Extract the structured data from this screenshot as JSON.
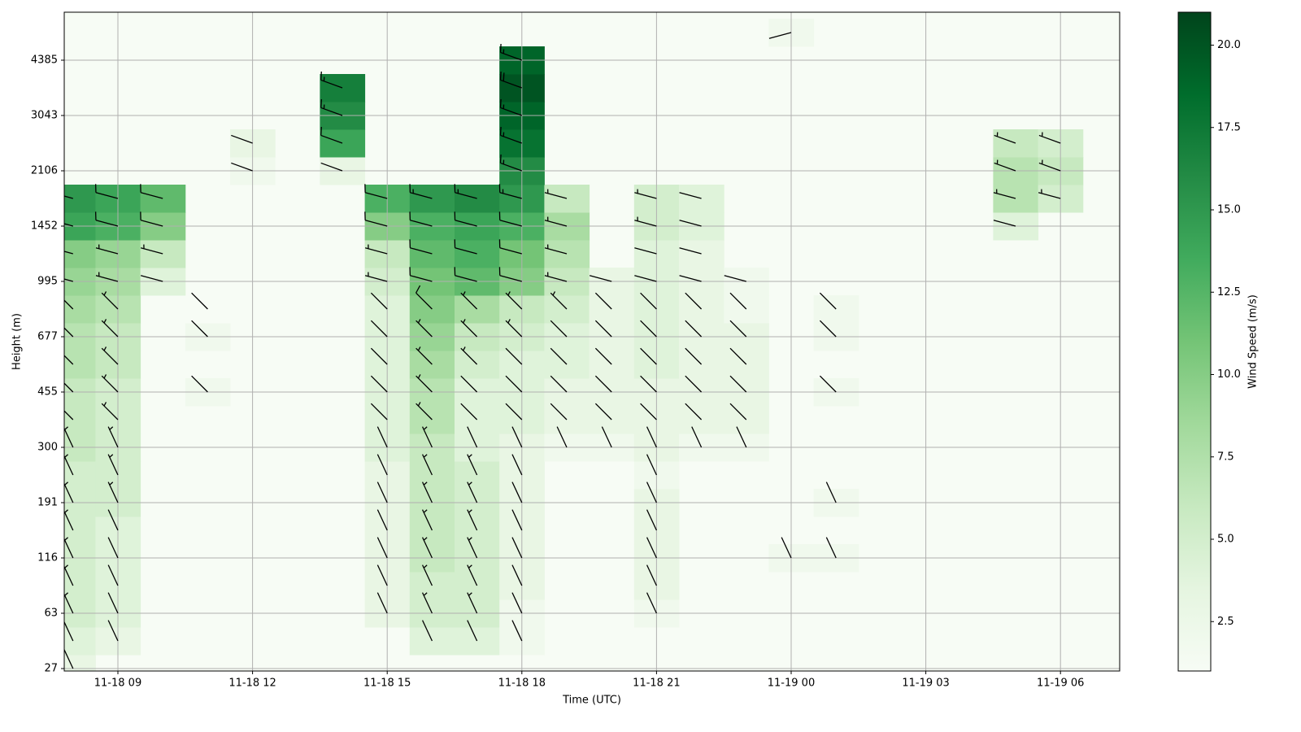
{
  "chart_data": {
    "type": "barb-heatmap",
    "xlabel": "Time (UTC)",
    "ylabel": "Height (m)",
    "colorbar_label": "Wind Speed (m/s)",
    "x_categories": [
      null,
      "11-18 09",
      null,
      null,
      "11-18 12",
      null,
      null,
      "11-18 15",
      null,
      null,
      "11-18 18",
      null,
      null,
      "11-18 21",
      null,
      null,
      "11-19 00",
      null,
      null,
      "11-19 03",
      null,
      null,
      "11-19 06",
      null
    ],
    "y_categories": [
      27,
      null,
      63,
      null,
      116,
      null,
      191,
      null,
      300,
      null,
      455,
      null,
      677,
      null,
      995,
      null,
      1452,
      null,
      2106,
      null,
      3043,
      null,
      4385,
      null
    ],
    "clim": [
      1,
      21
    ],
    "cticks": [
      2.5,
      {
        "value": 5,
        "label": "5.0"
      },
      7.5,
      {
        "value": 10,
        "label": "10.0"
      },
      12.5,
      {
        "value": 15,
        "label": "15.0"
      },
      17.5,
      {
        "value": 20,
        "label": "20.0"
      }
    ],
    "colormap": [
      "#f7fcf5",
      "#e5f5e0",
      "#c7e9c0",
      "#a1d99b",
      "#74c476",
      "#41ab5d",
      "#238b45",
      "#006d2c",
      "#00441b"
    ],
    "barb_color": "#000000",
    "grid": true,
    "z": [
      [
        3,
        null,
        null,
        null,
        null,
        null,
        null,
        null,
        null,
        null,
        null,
        null,
        null,
        null,
        null,
        null,
        null,
        null,
        null,
        null,
        null,
        null,
        null,
        null
      ],
      [
        4,
        3,
        null,
        null,
        null,
        null,
        null,
        null,
        4,
        4,
        2,
        null,
        null,
        null,
        null,
        null,
        null,
        null,
        null,
        null,
        null,
        null,
        null,
        null
      ],
      [
        5,
        4,
        null,
        null,
        null,
        null,
        null,
        3,
        5,
        5,
        2,
        null,
        null,
        2,
        null,
        null,
        null,
        null,
        null,
        null,
        null,
        null,
        null,
        null
      ],
      [
        5,
        4,
        null,
        null,
        null,
        null,
        null,
        3,
        5,
        5,
        3,
        null,
        null,
        3,
        null,
        null,
        null,
        null,
        null,
        null,
        null,
        null,
        null,
        null
      ],
      [
        5,
        4,
        null,
        null,
        null,
        null,
        null,
        3,
        6,
        5,
        3,
        null,
        null,
        3,
        null,
        null,
        2,
        2,
        null,
        null,
        null,
        null,
        null,
        null
      ],
      [
        5,
        4,
        null,
        null,
        null,
        null,
        null,
        3,
        6,
        5,
        3,
        null,
        null,
        3,
        null,
        null,
        null,
        null,
        null,
        null,
        null,
        null,
        null,
        null
      ],
      [
        5,
        5,
        null,
        null,
        null,
        null,
        null,
        3,
        6,
        5,
        3,
        null,
        null,
        3,
        null,
        null,
        null,
        2,
        null,
        null,
        null,
        null,
        null,
        null
      ],
      [
        5,
        5,
        null,
        null,
        null,
        null,
        null,
        3,
        6,
        5,
        3,
        null,
        null,
        2,
        null,
        null,
        null,
        null,
        null,
        null,
        null,
        null,
        null,
        null
      ],
      [
        6,
        5,
        null,
        null,
        null,
        null,
        null,
        4,
        6,
        4,
        3,
        2,
        2,
        3,
        2,
        2,
        null,
        null,
        null,
        null,
        null,
        null,
        null,
        null
      ],
      [
        6,
        5,
        null,
        null,
        null,
        null,
        null,
        4,
        7,
        4,
        4,
        3,
        3,
        3,
        3,
        3,
        null,
        null,
        null,
        null,
        null,
        null,
        null,
        null
      ],
      [
        6,
        5,
        null,
        2,
        null,
        null,
        null,
        4,
        7,
        4,
        4,
        3,
        3,
        3,
        3,
        3,
        null,
        2,
        null,
        null,
        null,
        null,
        null,
        null
      ],
      [
        7,
        6,
        null,
        null,
        null,
        null,
        null,
        4,
        8,
        5,
        4,
        4,
        3,
        4,
        3,
        3,
        null,
        null,
        null,
        null,
        null,
        null,
        null,
        null
      ],
      [
        7,
        6,
        null,
        2,
        null,
        null,
        null,
        4,
        9,
        6,
        5,
        4,
        3,
        4,
        3,
        3,
        null,
        2,
        null,
        null,
        null,
        null,
        null,
        null
      ],
      [
        8,
        7,
        null,
        1,
        null,
        null,
        null,
        4,
        10,
        8,
        6,
        5,
        3,
        4,
        3,
        2,
        null,
        2,
        null,
        null,
        null,
        null,
        null,
        null
      ],
      [
        9,
        8,
        4,
        null,
        null,
        null,
        null,
        5,
        11,
        12,
        10,
        6,
        3,
        4,
        3,
        2,
        null,
        null,
        null,
        null,
        null,
        null,
        null,
        null
      ],
      [
        10,
        9,
        6,
        null,
        null,
        null,
        null,
        6,
        12,
        13,
        11,
        7,
        null,
        4,
        3,
        null,
        null,
        null,
        null,
        null,
        null,
        null,
        null,
        null
      ],
      [
        14,
        13,
        10,
        null,
        null,
        null,
        null,
        10,
        13,
        14,
        13,
        8,
        null,
        5,
        4,
        null,
        null,
        null,
        null,
        null,
        null,
        4,
        null,
        null
      ],
      [
        15,
        14,
        12,
        null,
        null,
        null,
        null,
        13,
        15,
        16,
        15,
        6,
        null,
        5,
        4,
        null,
        null,
        null,
        null,
        null,
        null,
        7,
        5,
        null
      ],
      [
        null,
        null,
        null,
        null,
        2,
        null,
        3,
        null,
        null,
        null,
        16,
        null,
        null,
        null,
        null,
        null,
        null,
        null,
        null,
        null,
        null,
        7,
        6,
        null
      ],
      [
        null,
        null,
        null,
        null,
        3,
        null,
        14,
        null,
        null,
        null,
        18,
        null,
        null,
        null,
        null,
        null,
        null,
        null,
        null,
        null,
        null,
        6,
        5,
        null
      ],
      [
        null,
        null,
        null,
        null,
        null,
        null,
        16,
        null,
        null,
        null,
        19,
        null,
        null,
        null,
        null,
        null,
        null,
        null,
        null,
        null,
        null,
        null,
        null,
        null
      ],
      [
        null,
        null,
        null,
        null,
        null,
        null,
        17,
        null,
        null,
        null,
        20,
        null,
        null,
        null,
        null,
        null,
        null,
        null,
        null,
        null,
        null,
        null,
        null,
        null
      ],
      [
        null,
        null,
        null,
        null,
        null,
        null,
        null,
        null,
        null,
        null,
        19,
        null,
        null,
        null,
        null,
        null,
        null,
        null,
        null,
        null,
        null,
        null,
        null,
        null
      ],
      [
        null,
        null,
        null,
        null,
        null,
        null,
        null,
        null,
        null,
        null,
        null,
        null,
        null,
        null,
        null,
        null,
        2,
        null,
        null,
        null,
        null,
        null,
        null,
        null
      ]
    ],
    "direction": [
      [
        335,
        null,
        null,
        null,
        null,
        null,
        null,
        null,
        null,
        null,
        null,
        null,
        null,
        null,
        null,
        null,
        null,
        null,
        null,
        null,
        null,
        null,
        null,
        null
      ],
      [
        335,
        335,
        null,
        null,
        null,
        null,
        null,
        null,
        335,
        335,
        335,
        null,
        null,
        null,
        null,
        null,
        null,
        null,
        null,
        null,
        null,
        null,
        null,
        null
      ],
      [
        335,
        335,
        null,
        null,
        null,
        null,
        null,
        335,
        335,
        335,
        335,
        null,
        null,
        335,
        null,
        null,
        null,
        null,
        null,
        null,
        null,
        null,
        null,
        null
      ],
      [
        335,
        335,
        null,
        null,
        null,
        null,
        null,
        335,
        335,
        335,
        335,
        null,
        null,
        335,
        null,
        null,
        null,
        null,
        null,
        null,
        null,
        null,
        null,
        null
      ],
      [
        335,
        335,
        null,
        null,
        null,
        null,
        null,
        335,
        335,
        335,
        335,
        null,
        null,
        335,
        null,
        null,
        335,
        335,
        null,
        null,
        null,
        null,
        null,
        null
      ],
      [
        335,
        335,
        null,
        null,
        null,
        null,
        null,
        335,
        335,
        335,
        335,
        null,
        null,
        335,
        null,
        null,
        null,
        null,
        null,
        null,
        null,
        null,
        null,
        null
      ],
      [
        335,
        335,
        null,
        null,
        null,
        null,
        null,
        335,
        335,
        335,
        335,
        null,
        null,
        335,
        null,
        null,
        null,
        335,
        null,
        null,
        null,
        null,
        null,
        null
      ],
      [
        335,
        335,
        null,
        null,
        null,
        null,
        null,
        335,
        335,
        335,
        335,
        null,
        null,
        335,
        null,
        null,
        null,
        null,
        null,
        null,
        null,
        null,
        null,
        null
      ],
      [
        335,
        335,
        null,
        null,
        null,
        null,
        null,
        335,
        335,
        335,
        335,
        335,
        335,
        335,
        335,
        335,
        null,
        null,
        null,
        null,
        null,
        null,
        null,
        null
      ],
      [
        315,
        315,
        null,
        null,
        null,
        null,
        null,
        315,
        315,
        315,
        315,
        315,
        315,
        315,
        315,
        315,
        null,
        null,
        null,
        null,
        null,
        null,
        null,
        null
      ],
      [
        315,
        315,
        null,
        315,
        null,
        null,
        null,
        315,
        315,
        315,
        315,
        315,
        315,
        315,
        315,
        315,
        null,
        315,
        null,
        null,
        null,
        null,
        null,
        null
      ],
      [
        315,
        315,
        null,
        null,
        null,
        null,
        null,
        315,
        315,
        315,
        315,
        315,
        315,
        315,
        315,
        315,
        null,
        null,
        null,
        null,
        null,
        null,
        null,
        null
      ],
      [
        315,
        315,
        null,
        315,
        null,
        null,
        null,
        315,
        315,
        315,
        315,
        315,
        315,
        315,
        315,
        315,
        null,
        315,
        null,
        null,
        null,
        null,
        null,
        null
      ],
      [
        315,
        315,
        null,
        315,
        null,
        null,
        null,
        315,
        315,
        315,
        315,
        315,
        315,
        315,
        315,
        315,
        null,
        315,
        null,
        null,
        null,
        null,
        null,
        null
      ],
      [
        285,
        285,
        285,
        null,
        null,
        null,
        null,
        285,
        285,
        285,
        285,
        285,
        285,
        285,
        285,
        285,
        null,
        null,
        null,
        null,
        null,
        null,
        null,
        null
      ],
      [
        285,
        285,
        285,
        null,
        null,
        null,
        null,
        285,
        285,
        285,
        285,
        285,
        null,
        285,
        285,
        null,
        null,
        null,
        null,
        null,
        null,
        null,
        null,
        null
      ],
      [
        285,
        285,
        285,
        null,
        null,
        null,
        null,
        285,
        285,
        285,
        285,
        285,
        null,
        285,
        285,
        null,
        null,
        null,
        null,
        null,
        null,
        285,
        null,
        null
      ],
      [
        285,
        285,
        285,
        null,
        null,
        null,
        null,
        285,
        285,
        285,
        285,
        285,
        null,
        285,
        285,
        null,
        null,
        null,
        null,
        null,
        null,
        285,
        285,
        null
      ],
      [
        null,
        null,
        null,
        null,
        290,
        null,
        290,
        null,
        null,
        null,
        290,
        null,
        null,
        null,
        null,
        null,
        null,
        null,
        null,
        null,
        null,
        290,
        290,
        null
      ],
      [
        null,
        null,
        null,
        null,
        290,
        null,
        290,
        null,
        null,
        null,
        290,
        null,
        null,
        null,
        null,
        null,
        null,
        null,
        null,
        null,
        null,
        290,
        290,
        null
      ],
      [
        null,
        null,
        null,
        null,
        null,
        null,
        290,
        null,
        null,
        null,
        290,
        null,
        null,
        null,
        null,
        null,
        null,
        null,
        null,
        null,
        null,
        null,
        null,
        null
      ],
      [
        null,
        null,
        null,
        null,
        null,
        null,
        290,
        null,
        null,
        null,
        290,
        null,
        null,
        null,
        null,
        null,
        null,
        null,
        null,
        null,
        null,
        null,
        null,
        null
      ],
      [
        null,
        null,
        null,
        null,
        null,
        null,
        null,
        null,
        null,
        null,
        290,
        null,
        null,
        null,
        null,
        null,
        null,
        null,
        null,
        null,
        null,
        null,
        null,
        null
      ],
      [
        null,
        null,
        null,
        null,
        null,
        null,
        null,
        null,
        null,
        null,
        null,
        null,
        null,
        null,
        null,
        null,
        255,
        null,
        null,
        null,
        null,
        null,
        null,
        null
      ]
    ]
  }
}
